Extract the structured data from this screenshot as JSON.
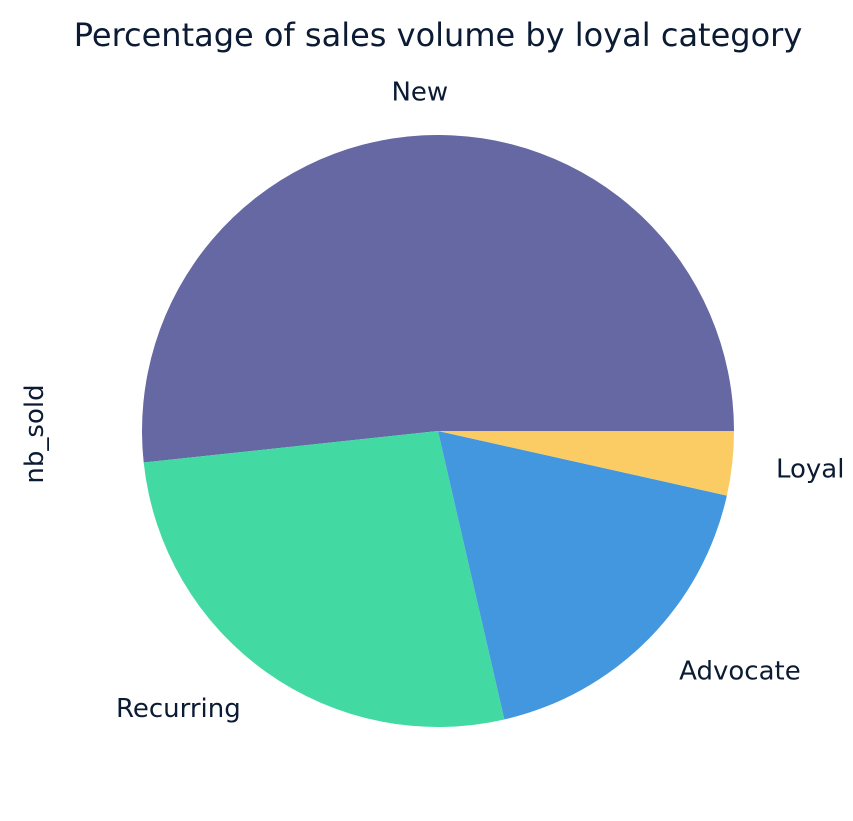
{
  "chart_data": {
    "type": "pie",
    "title": "Percentage of sales volume by loyal category",
    "ylabel": "nb_sold",
    "start_angle_deg": 0,
    "direction": "clockwise-in-svg",
    "slices": [
      {
        "label": "New",
        "value": 51.7,
        "color": "#6568a2"
      },
      {
        "label": "Recurring",
        "value": 26.9,
        "color": "#43d9a3"
      },
      {
        "label": "Advocate",
        "value": 17.9,
        "color": "#4297de"
      },
      {
        "label": "Loyal",
        "value": 3.5,
        "color": "#fbcb64"
      }
    ]
  }
}
